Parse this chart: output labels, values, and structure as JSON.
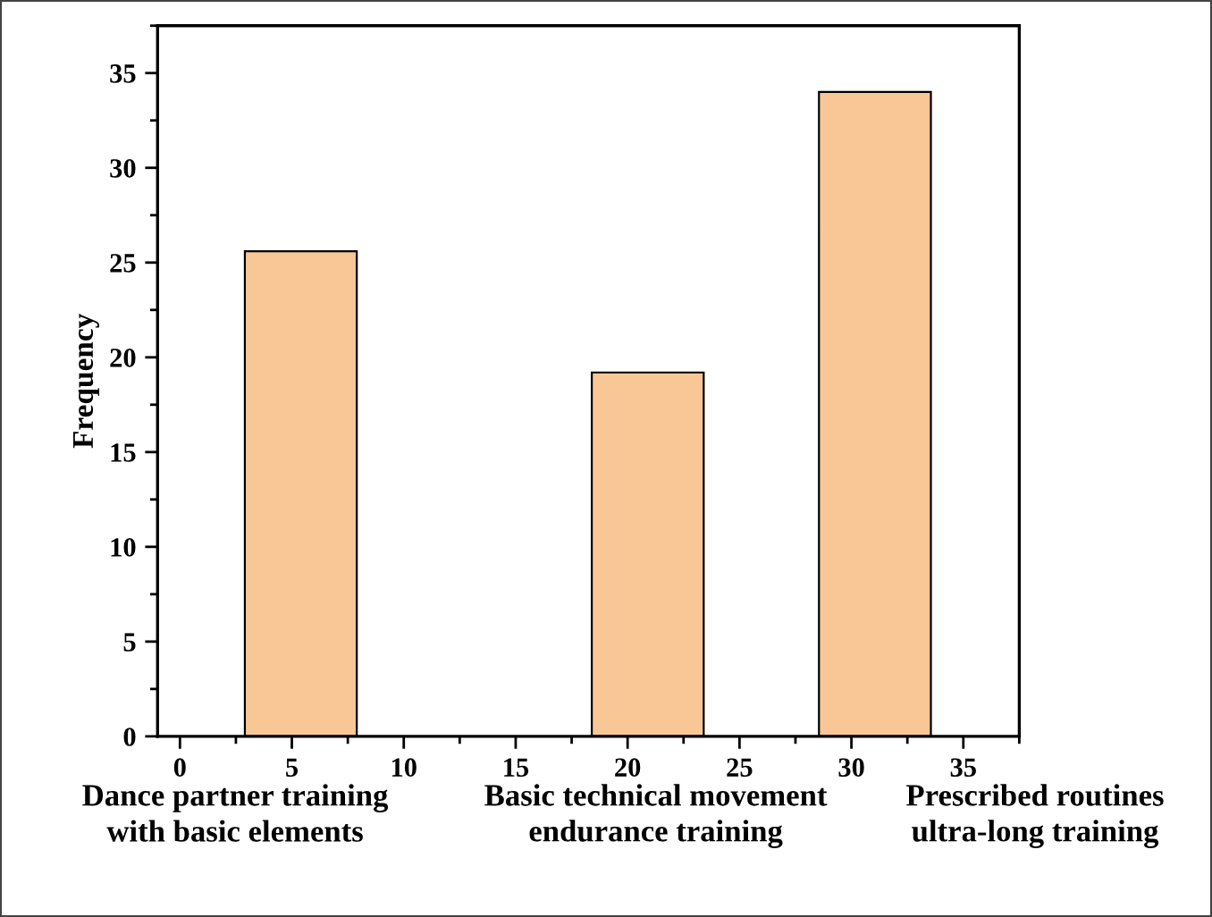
{
  "chart_data": {
    "type": "bar",
    "ylabel": "Frequency",
    "x": [
      5.4,
      20.9,
      31.05
    ],
    "values": [
      25.6,
      19.2,
      34.0
    ],
    "color": "#f9c795",
    "xlim": [
      -1,
      37.5
    ],
    "xticks": [
      0,
      5,
      10,
      15,
      20,
      25,
      30,
      35
    ],
    "ylim": [
      0,
      37.5
    ],
    "yticks": [
      0,
      5,
      10,
      15,
      20,
      25,
      30,
      35
    ],
    "annotations": [
      "Dance partner training\nwith basic elements",
      "Basic technical movement\nendurance training",
      "Prescribed routines\nultra-long training"
    ],
    "grid": false,
    "legend": false
  }
}
